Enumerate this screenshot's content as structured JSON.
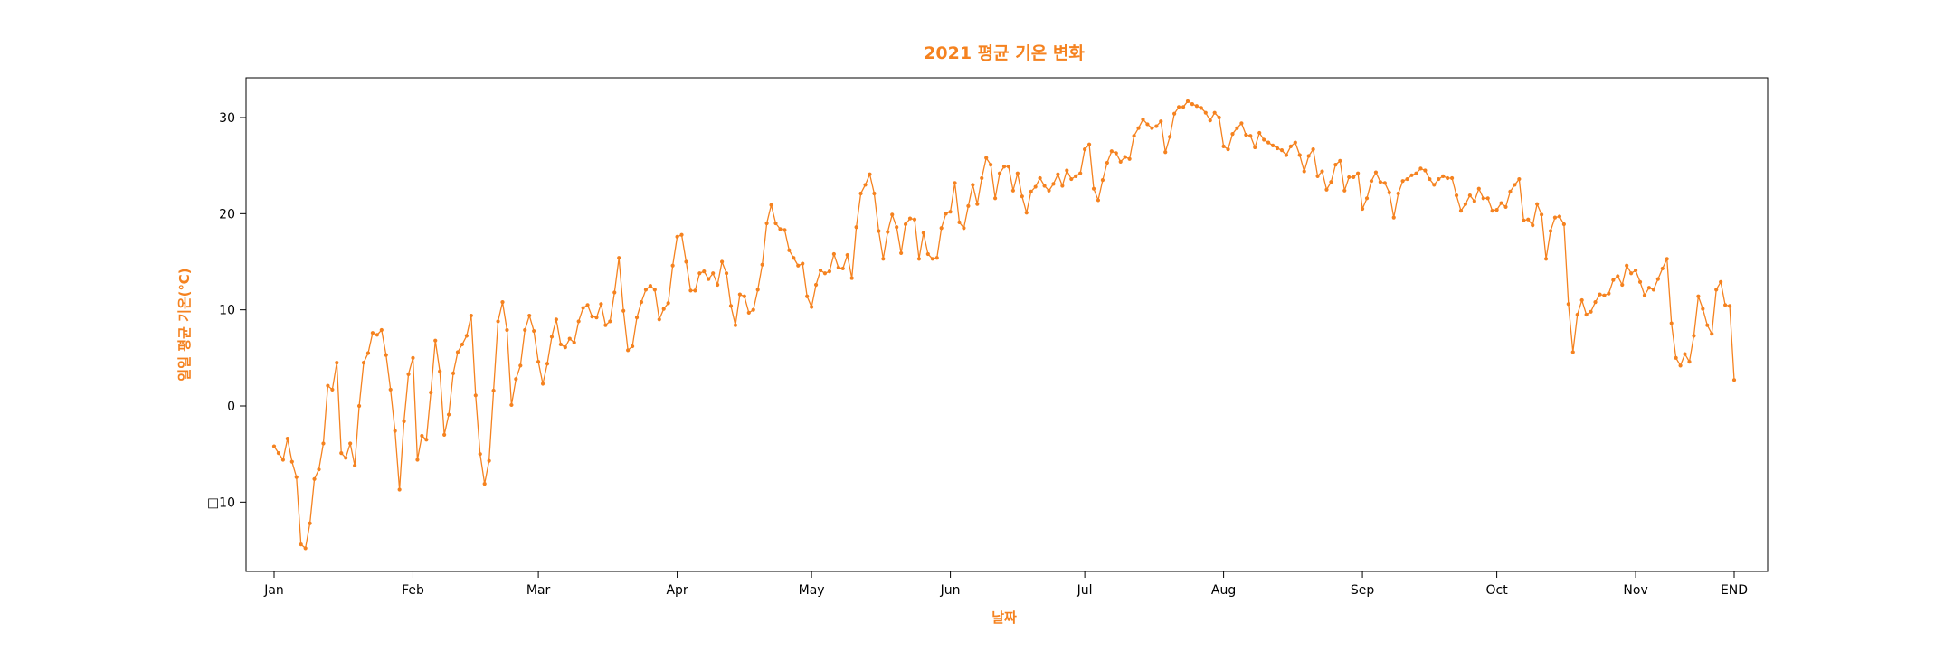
{
  "chart_data": {
    "type": "line",
    "title": "2021 평균 기온 변화",
    "xlabel": "날짜",
    "ylabel": "일일 평균 기온(℃)",
    "color": "#F5821F",
    "ylim": [
      -17,
      34
    ],
    "yticks": [
      30,
      20,
      10,
      0,
      -10
    ],
    "ytick_labels": [
      "30",
      "20",
      "10",
      "0",
      "□10"
    ],
    "xticks": [
      {
        "label": "Jan",
        "day": 1
      },
      {
        "label": "Feb",
        "day": 32
      },
      {
        "label": "Mar",
        "day": 60
      },
      {
        "label": "Apr",
        "day": 91
      },
      {
        "label": "May",
        "day": 121
      },
      {
        "label": "Jun",
        "day": 152
      },
      {
        "label": "Jul",
        "day": 182
      },
      {
        "label": "Aug",
        "day": 213
      },
      {
        "label": "Sep",
        "day": 244
      },
      {
        "label": "Oct",
        "day": 274
      },
      {
        "label": "Nov",
        "day": 305
      },
      {
        "label": "END",
        "day": 327
      }
    ],
    "grid": false,
    "marker": "circle",
    "series": [
      {
        "values": [
          -4.2,
          -4.9,
          -5.6,
          -3.4,
          -5.8,
          -7.4,
          -14.4,
          -14.8,
          -12.2,
          -7.6,
          -6.6,
          -3.9,
          2.1,
          1.7,
          4.5,
          -4.9,
          -5.4,
          -3.9,
          -6.2,
          0.0,
          4.5,
          5.5,
          7.6,
          7.4,
          7.9,
          5.3,
          1.7,
          -2.6,
          -8.7,
          -1.6,
          3.3,
          5.0,
          -5.6,
          -3.1,
          -3.5,
          1.4,
          6.8,
          3.6,
          -3.0,
          -0.9,
          3.4,
          5.6,
          6.4,
          7.3,
          9.4,
          1.1,
          -5.0,
          -8.1,
          -5.7,
          1.6,
          8.8,
          10.8,
          7.9,
          0.1,
          2.8,
          4.2,
          7.9,
          9.4,
          7.8,
          4.6,
          2.3,
          4.4,
          7.2,
          9.0,
          6.4,
          6.1,
          7.0,
          6.6,
          8.8,
          10.2,
          10.5,
          9.3,
          9.2,
          10.6,
          8.4,
          8.8,
          11.8,
          15.4,
          9.9,
          5.8,
          6.2,
          9.2,
          10.8,
          12.1,
          12.5,
          12.1,
          9.0,
          10.1,
          10.7,
          14.6,
          17.6,
          17.8,
          15.0,
          12.0,
          12.0,
          13.8,
          14.0,
          13.2,
          13.8,
          12.6,
          15.0,
          13.8,
          10.4,
          8.4,
          11.6,
          11.4,
          9.7,
          10.0,
          12.1,
          14.7,
          19.0,
          20.9,
          19.0,
          18.4,
          18.3,
          16.2,
          15.4,
          14.6,
          14.8,
          11.4,
          10.3,
          12.6,
          14.1,
          13.8,
          14.0,
          15.8,
          14.4,
          14.3,
          15.7,
          13.3,
          18.6,
          22.1,
          23.0,
          24.1,
          22.1,
          18.2,
          15.3,
          18.1,
          19.9,
          18.6,
          15.9,
          18.9,
          19.5,
          19.4,
          15.3,
          18.0,
          15.8,
          15.3,
          15.4,
          18.5,
          20.0,
          20.2,
          23.2,
          19.1,
          18.5,
          20.8,
          23.0,
          21.0,
          23.7,
          25.8,
          25.1,
          21.6,
          24.2,
          24.9,
          24.9,
          22.4,
          24.2,
          21.8,
          20.1,
          22.3,
          22.8,
          23.7,
          22.9,
          22.4,
          23.1,
          24.1,
          22.9,
          24.5,
          23.6,
          23.9,
          24.2,
          26.7,
          27.2,
          22.6,
          21.4,
          23.5,
          25.3,
          26.5,
          26.3,
          25.4,
          25.9,
          25.7,
          28.1,
          28.9,
          29.8,
          29.3,
          28.9,
          29.1,
          29.6,
          26.4,
          28.0,
          30.4,
          31.1,
          31.1,
          31.7,
          31.4,
          31.2,
          31.0,
          30.5,
          29.7,
          30.5,
          30.0,
          27.0,
          26.7,
          28.3,
          28.9,
          29.4,
          28.2,
          28.1,
          26.9,
          28.4,
          27.7,
          27.4,
          27.1,
          26.8,
          26.6,
          26.1,
          27.0,
          27.4,
          26.1,
          24.4,
          26.0,
          26.7,
          23.9,
          24.4,
          22.5,
          23.3,
          25.1,
          25.5,
          22.4,
          23.8,
          23.8,
          24.2,
          20.5,
          21.6,
          23.4,
          24.3,
          23.3,
          23.2,
          22.2,
          19.6,
          22.1,
          23.4,
          23.6,
          24.0,
          24.2,
          24.7,
          24.5,
          23.6,
          23.0,
          23.6,
          23.9,
          23.7,
          23.7,
          21.9,
          20.3,
          21.0,
          21.9,
          21.3,
          22.6,
          21.6,
          21.6,
          20.3,
          20.4,
          21.1,
          20.7,
          22.3,
          23.0,
          23.6,
          19.3,
          19.4,
          18.8,
          21.0,
          19.9,
          15.3,
          18.2,
          19.6,
          19.7,
          18.9,
          10.6,
          5.6,
          9.5,
          11.0,
          9.5,
          9.8,
          10.8,
          11.6,
          11.5,
          11.7,
          13.1,
          13.5,
          12.6,
          14.6,
          13.8,
          14.1,
          12.9,
          11.5,
          12.3,
          12.1,
          13.2,
          14.3,
          15.3,
          8.6,
          5.0,
          4.2,
          5.4,
          4.6,
          7.3,
          11.4,
          10.1,
          8.4,
          7.5,
          12.1,
          12.9,
          10.5,
          10.4,
          2.7
        ]
      }
    ]
  }
}
